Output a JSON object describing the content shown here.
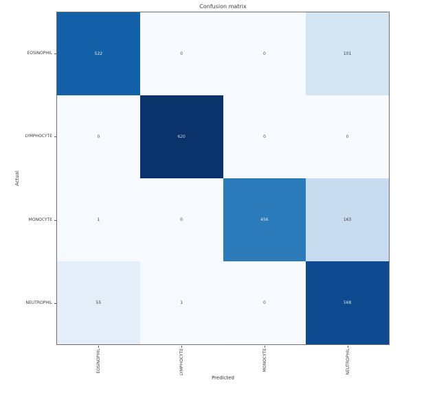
{
  "chart_data": {
    "type": "heatmap",
    "title": "Confusion matrix",
    "xlabel": "Predicted",
    "ylabel": "Actual",
    "x_tick_labels": [
      "EOSINOPHIL",
      "LYMPHOCYTE",
      "MONOCYTE",
      "NEUTROPHIL"
    ],
    "y_tick_labels": [
      "EOSINOPHIL",
      "LYMPHOCYTE",
      "MONOCYTE",
      "NEUTROPHIL"
    ],
    "matrix": [
      [
        522,
        0,
        0,
        101
      ],
      [
        0,
        620,
        0,
        0
      ],
      [
        1,
        0,
        456,
        163
      ],
      [
        55,
        1,
        0,
        568
      ]
    ],
    "colormap": "Blues",
    "value_range": [
      0,
      620
    ],
    "grid": false,
    "legend": "none",
    "cell_colors": [
      [
        "#1561a9",
        "#f7fbff",
        "#f7fbff",
        "#d3e4f3"
      ],
      [
        "#f7fbff",
        "#0b336b",
        "#f7fbff",
        "#f7fbff"
      ],
      [
        "#f6fafe",
        "#f7fbff",
        "#2b7bba",
        "#c7dcef"
      ],
      [
        "#e3eef8",
        "#f6fafe",
        "#f7fbff",
        "#0e4a90"
      ]
    ],
    "cell_text_colors": [
      [
        "#e2eaf4",
        "#4a4a4a",
        "#4a4a4a",
        "#3a3a3a"
      ],
      [
        "#4a4a4a",
        "#ccd6e6",
        "#4a4a4a",
        "#4a4a4a"
      ],
      [
        "#3a3a3a",
        "#4a4a4a",
        "#dfe9f3",
        "#3a3a3a"
      ],
      [
        "#3a3a3a",
        "#3a3a3a",
        "#4a4a4a",
        "#d6e0ee"
      ]
    ]
  }
}
